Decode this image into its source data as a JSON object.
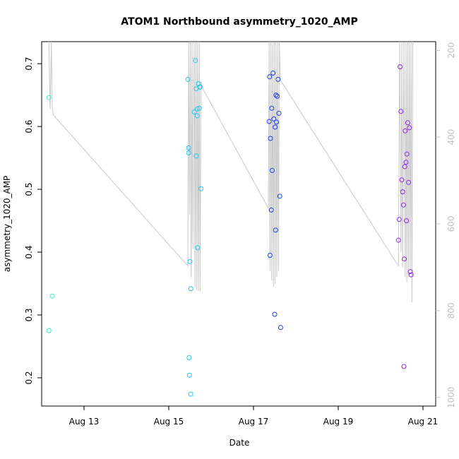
{
  "chart_data": {
    "type": "scatter",
    "title": "ATOM1 Northbound asymmetry_1020_AMP",
    "xlabel": "Date",
    "ylabel": "asymmetry_1020_AMP",
    "xlim": [
      12.0,
      21.3
    ],
    "ylim": [
      0.155,
      0.735
    ],
    "x_ticks": [
      {
        "v": 13,
        "label": "Aug 13"
      },
      {
        "v": 15,
        "label": "Aug 15"
      },
      {
        "v": 17,
        "label": "Aug 17"
      },
      {
        "v": 19,
        "label": "Aug 19"
      },
      {
        "v": 21,
        "label": "Aug 21"
      }
    ],
    "y_ticks": [
      {
        "v": 0.2,
        "label": "0.2"
      },
      {
        "v": 0.3,
        "label": "0.3"
      },
      {
        "v": 0.4,
        "label": "0.4"
      },
      {
        "v": 0.5,
        "label": "0.5"
      },
      {
        "v": 0.6,
        "label": "0.6"
      },
      {
        "v": 0.7,
        "label": "0.7"
      }
    ],
    "secondary_axis": {
      "range": [
        180,
        1020
      ],
      "reversed": true,
      "color": "#c0c0c0",
      "ticks": [
        {
          "v": 200,
          "label": "200"
        },
        {
          "v": 400,
          "label": "400"
        },
        {
          "v": 600,
          "label": "600"
        },
        {
          "v": 800,
          "label": "800"
        },
        {
          "v": 1000,
          "label": "1000"
        }
      ]
    },
    "line_series": {
      "color": "#c8c8c8",
      "x": [
        12.17,
        12.2,
        12.23,
        12.25,
        12.28,
        15.45,
        15.47,
        15.49,
        15.51,
        15.53,
        15.55,
        15.57,
        15.6,
        15.62,
        15.64,
        15.66,
        15.68,
        15.7,
        15.72,
        15.74,
        15.76,
        15.78,
        17.35,
        17.37,
        17.39,
        17.41,
        17.43,
        17.45,
        17.47,
        17.49,
        17.51,
        17.53,
        17.55,
        17.57,
        17.59,
        17.61,
        17.63,
        17.65,
        20.42,
        20.45,
        20.48,
        20.5,
        20.52,
        20.55,
        20.58,
        20.6,
        20.62,
        20.64,
        20.66,
        20.68,
        20.7,
        20.72,
        20.74,
        20.76
      ],
      "y": [
        0.735,
        0.628,
        0.735,
        0.63,
        0.618,
        0.378,
        0.735,
        0.46,
        0.735,
        0.36,
        0.735,
        0.405,
        0.735,
        0.345,
        0.735,
        0.34,
        0.735,
        0.338,
        0.735,
        0.338,
        0.672,
        0.663,
        0.47,
        0.735,
        0.37,
        0.735,
        0.355,
        0.735,
        0.345,
        0.735,
        0.35,
        0.735,
        0.36,
        0.735,
        0.37,
        0.735,
        0.675,
        0.672,
        0.378,
        0.735,
        0.4,
        0.735,
        0.375,
        0.735,
        0.36,
        0.735,
        0.352,
        0.735,
        0.36,
        0.735,
        0.37,
        0.735,
        0.32,
        0.735
      ]
    },
    "series": [
      {
        "color": "#33f0c4",
        "x": [
          12.17,
          12.17,
          12.25
        ],
        "y": [
          0.646,
          0.275,
          0.33
        ]
      },
      {
        "color": "#22c8ee",
        "x": [
          15.45,
          15.47,
          15.47,
          15.48,
          15.49,
          15.5,
          15.52,
          15.52,
          15.6,
          15.63,
          15.65,
          15.65,
          15.67,
          15.67,
          15.68,
          15.7,
          15.72,
          15.73,
          15.74,
          15.76
        ],
        "y": [
          0.675,
          0.566,
          0.558,
          0.232,
          0.204,
          0.385,
          0.342,
          0.174,
          0.623,
          0.705,
          0.66,
          0.553,
          0.628,
          0.617,
          0.407,
          0.668,
          0.629,
          0.663,
          0.663,
          0.501
        ]
      },
      {
        "color": "#2040e8",
        "x": [
          17.37,
          17.38,
          17.39,
          17.4,
          17.42,
          17.43,
          17.44,
          17.46,
          17.48,
          17.5,
          17.51,
          17.52,
          17.53,
          17.54,
          17.56,
          17.58,
          17.6,
          17.62,
          17.64
        ],
        "y": [
          0.608,
          0.679,
          0.395,
          0.581,
          0.467,
          0.629,
          0.53,
          0.685,
          0.612,
          0.301,
          0.599,
          0.435,
          0.65,
          0.607,
          0.648,
          0.675,
          0.621,
          0.489,
          0.28
        ]
      },
      {
        "color": "#8a2be2",
        "x": [
          20.42,
          20.44,
          20.46,
          20.48,
          20.5,
          20.52,
          20.54,
          20.55,
          20.56,
          20.57,
          20.58,
          20.6,
          20.61,
          20.62,
          20.64,
          20.66,
          20.68,
          20.7,
          20.72
        ],
        "y": [
          0.419,
          0.452,
          0.695,
          0.624,
          0.515,
          0.496,
          0.475,
          0.218,
          0.389,
          0.536,
          0.593,
          0.543,
          0.45,
          0.556,
          0.606,
          0.511,
          0.598,
          0.369,
          0.364
        ]
      }
    ]
  }
}
